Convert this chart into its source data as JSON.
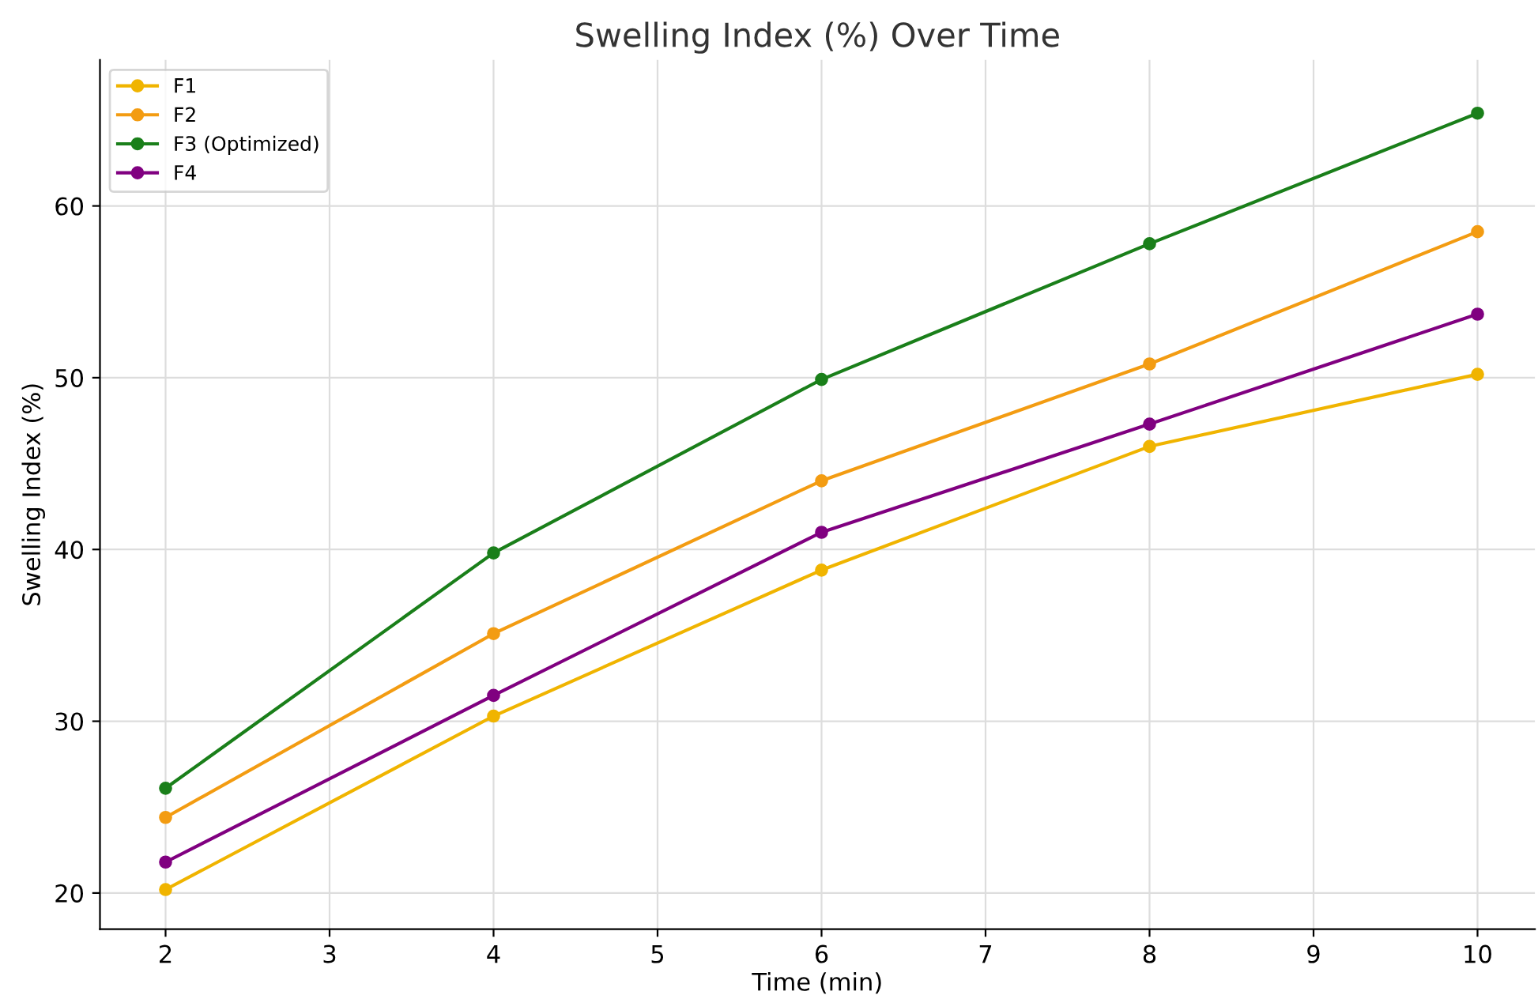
{
  "chart_data": {
    "type": "line",
    "title": "Swelling Index (%) Over Time",
    "xlabel": "Time (min)",
    "ylabel": "Swelling Index (%)",
    "x": [
      2,
      4,
      6,
      8,
      10
    ],
    "series": [
      {
        "name": "F1",
        "color": "#f0b400",
        "values": [
          20.2,
          30.3,
          38.8,
          46.0,
          50.2
        ]
      },
      {
        "name": "F2",
        "color": "#f39c12",
        "values": [
          24.4,
          35.1,
          44.0,
          50.8,
          58.5
        ]
      },
      {
        "name": "F3 (Optimized)",
        "color": "#1a7f1a",
        "values": [
          26.1,
          39.8,
          49.9,
          57.8,
          65.4
        ]
      },
      {
        "name": "F4",
        "color": "#800080",
        "values": [
          21.8,
          31.5,
          41.0,
          47.3,
          53.7
        ]
      }
    ],
    "xlim": [
      1.6,
      10.35
    ],
    "xticks": [
      2,
      3,
      4,
      5,
      6,
      7,
      8,
      9,
      10
    ],
    "ylim": [
      17.9,
      68.5
    ],
    "yticks": [
      20,
      30,
      40,
      50,
      60
    ],
    "grid": true,
    "legend": "top left",
    "marker": "circle",
    "line_style": "solid"
  }
}
